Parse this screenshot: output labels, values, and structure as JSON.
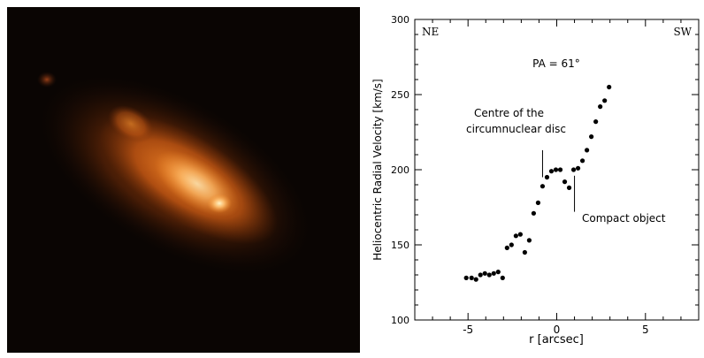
{
  "image_panel": {
    "colors": {
      "background": "#0a0503",
      "glow_outer": "#6a2a08",
      "glow_mid": "#d06418",
      "glow_core": "#ffe6a8"
    }
  },
  "chart_data": {
    "type": "scatter",
    "xlabel": "r [arcsec]",
    "ylabel": "Heliocentric Radial Velocity [km/s]",
    "xlim": [
      -8.0,
      8.0
    ],
    "ylim": [
      100,
      300
    ],
    "x_ticks": [
      -5,
      0,
      5
    ],
    "y_ticks": [
      100,
      150,
      200,
      250,
      300
    ],
    "corner_labels": {
      "left": "NE",
      "right": "SW"
    },
    "annotation_pa": "PA = 61°",
    "annotations": [
      {
        "text_line1": "Centre of the",
        "text_line2": "circumnuclear disc",
        "x": -0.8,
        "y_from": 195,
        "y_to": 213
      },
      {
        "text": "Compact object",
        "x": 1.0,
        "y_from": 196,
        "y_to": 172
      }
    ],
    "points": {
      "x": [
        -5.1,
        -4.8,
        -4.55,
        -4.3,
        -4.05,
        -3.8,
        -3.55,
        -3.3,
        -3.05,
        -2.8,
        -2.55,
        -2.3,
        -2.05,
        -1.8,
        -1.55,
        -1.3,
        -1.05,
        -0.8,
        -0.55,
        -0.3,
        -0.05,
        0.2,
        0.45,
        0.7,
        0.95,
        1.2,
        1.45,
        1.7,
        1.95,
        2.2,
        2.45,
        2.7,
        2.95
      ],
      "y": [
        128,
        128,
        127,
        130,
        131,
        130,
        131,
        132,
        128,
        148,
        150,
        156,
        157,
        145,
        153,
        171,
        178,
        189,
        195,
        199,
        200,
        200,
        192,
        188,
        200,
        201,
        206,
        213,
        222,
        232,
        242,
        246,
        255
      ]
    }
  }
}
